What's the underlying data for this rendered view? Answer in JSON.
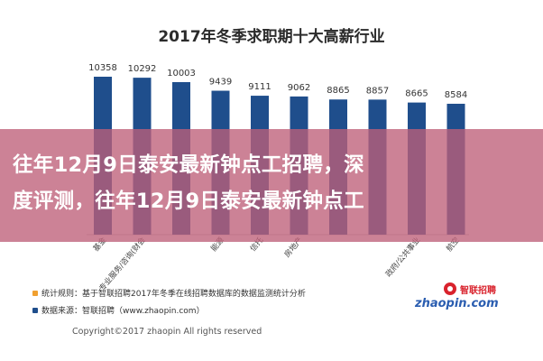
{
  "colors": {
    "bar": "#1f4e8c",
    "overlay": "rgba(190,95,120,0.78)",
    "bullet_orange": "#f0a030",
    "bullet_blue": "#1f4e8c"
  },
  "overlay": {
    "line1": "往年12月9日泰安最新钟点工招聘，深",
    "line2": "度评测，往年12月9日泰安最新钟点工"
  },
  "footer": {
    "stats_rule": "统计规则：基于智联招聘2017年冬季在线招聘数据库的数据监测统计分析",
    "data_source": "数据来源：智联招聘（www.zhaopin.com）",
    "copyright": "Copyright©2017  zhaopin  All rights reserved"
  },
  "brand": {
    "cn": "智联招聘",
    "en": "zhaopin.com"
  },
  "chart_data": {
    "type": "bar",
    "title": "2017年冬季求职期十大高薪行业",
    "categories": [
      "基金",
      "专业服务/咨询(财会",
      "",
      "能源",
      "信托",
      "房地产",
      "",
      "",
      "政府/公共事业",
      "航空"
    ],
    "values": [
      10358,
      10292,
      10003,
      9439,
      9111,
      9062,
      8865,
      8857,
      8665,
      8584
    ],
    "ylim": [
      0,
      11000
    ]
  }
}
